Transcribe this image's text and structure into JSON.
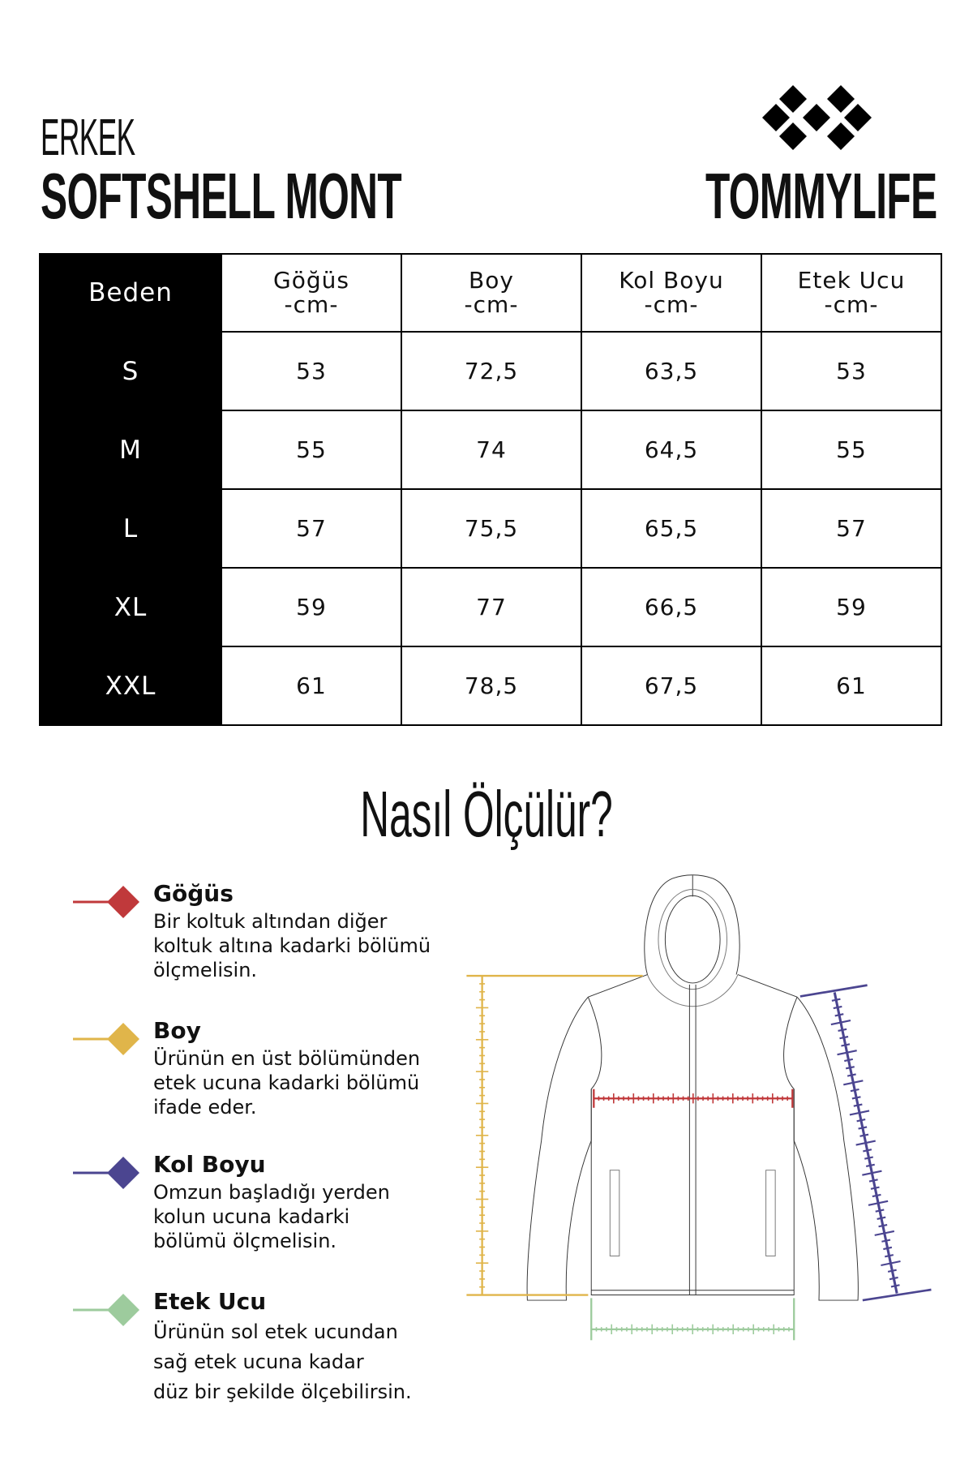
{
  "header": {
    "subtitle": "ERKEK",
    "title": "SOFTSHELL MONT",
    "brand": "TOMMYLIFE"
  },
  "table": {
    "size_header": "Beden",
    "columns": [
      {
        "name": "Göğüs",
        "unit": "-cm-"
      },
      {
        "name": "Boy",
        "unit": "-cm-"
      },
      {
        "name": "Kol Boyu",
        "unit": "-cm-"
      },
      {
        "name": "Etek Ucu",
        "unit": "-cm-"
      }
    ],
    "rows": [
      {
        "size": "S",
        "values": [
          "53",
          "72,5",
          "63,5",
          "53"
        ]
      },
      {
        "size": "M",
        "values": [
          "55",
          "74",
          "64,5",
          "55"
        ]
      },
      {
        "size": "L",
        "values": [
          "57",
          "75,5",
          "65,5",
          "57"
        ]
      },
      {
        "size": "XL",
        "values": [
          "59",
          "77",
          "66,5",
          "59"
        ]
      },
      {
        "size": "XXL",
        "values": [
          "61",
          "78,5",
          "67,5",
          "61"
        ]
      }
    ]
  },
  "guide": {
    "title": "Nasıl Ölçülür?",
    "items": [
      {
        "label": "Göğüs",
        "color": "#c0393b",
        "lines": [
          "Bir koltuk altından diğer",
          "koltuk altına kadarki bölümü",
          "ölçmelisin."
        ]
      },
      {
        "label": "Boy",
        "color": "#e0b54a",
        "lines": [
          "Ürünün en üst bölümünden",
          "etek ucuna kadarki bölümü",
          "ifade eder."
        ]
      },
      {
        "label": "Kol Boyu",
        "color": "#4b4590",
        "lines": [
          "Omzun başladığı yerden",
          "kolun ucuna kadarki",
          "bölümü ölçmelisin."
        ]
      },
      {
        "label": "Etek Ucu",
        "color": "#9dcb9d",
        "lines": [
          "Ürünün sol etek ucundan",
          "sağ etek ucuna kadar",
          "düz bir şekilde ölçebilirsin."
        ]
      }
    ]
  }
}
